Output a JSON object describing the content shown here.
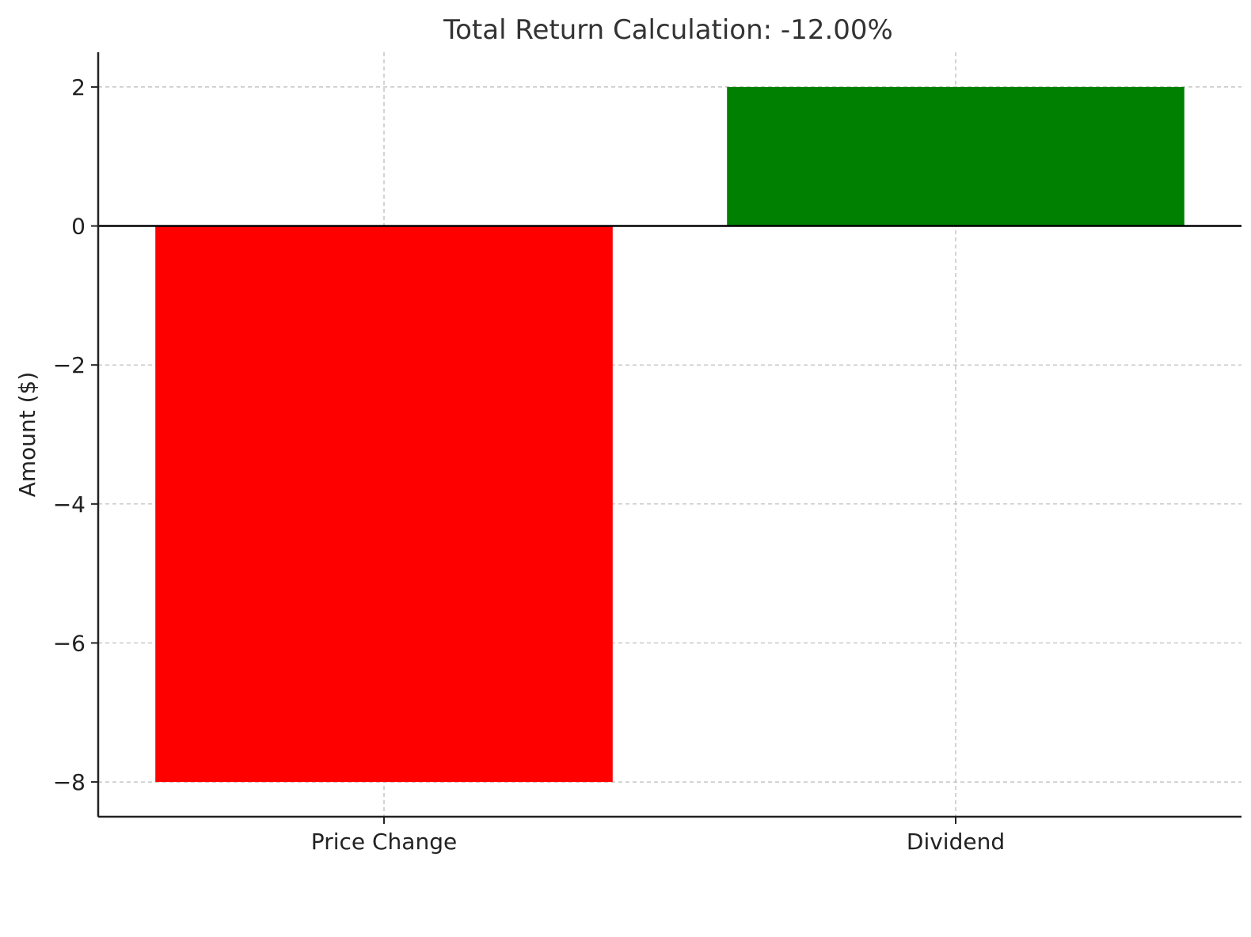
{
  "chart_data": {
    "type": "bar",
    "title": "Total Return Calculation: -12.00%",
    "xlabel": "",
    "ylabel": "Amount ($)",
    "categories": [
      "Price Change",
      "Dividend"
    ],
    "values": [
      -8,
      2
    ],
    "colors": [
      "#ff0000",
      "#008000"
    ],
    "ylim": [
      -8.5,
      2.5
    ],
    "yticks": [
      -8,
      -6,
      -4,
      -2,
      0,
      2
    ],
    "ytick_labels": [
      "−8",
      "−6",
      "−4",
      "−2",
      "0",
      "2"
    ],
    "grid": true,
    "zero_line": true
  }
}
